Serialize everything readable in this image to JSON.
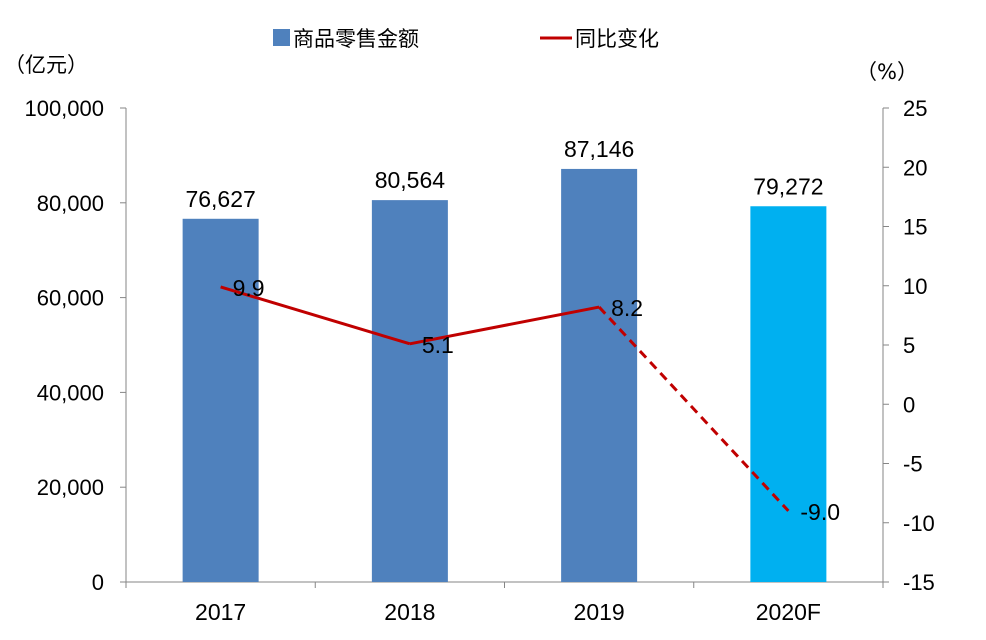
{
  "chart_data": {
    "type": "bar+line",
    "categories": [
      "2017",
      "2018",
      "2019",
      "2020F"
    ],
    "series": [
      {
        "name": "商品零售金额",
        "kind": "bar",
        "axis": "left",
        "values": [
          76627,
          80564,
          87146,
          79272
        ],
        "value_labels": [
          "76,627",
          "80,564",
          "87,146",
          "79,272"
        ],
        "colors": [
          "#4F81BD",
          "#4F81BD",
          "#4F81BD",
          "#00B0F0"
        ]
      },
      {
        "name": "同比变化",
        "kind": "line",
        "axis": "right",
        "values": [
          9.9,
          5.1,
          8.2,
          -9.0
        ],
        "value_labels": [
          "9.9",
          "5.1",
          "8.2",
          "-9.0"
        ],
        "color": "#C00000",
        "dashed_from_index": 2
      }
    ],
    "y_left": {
      "unit": "（亿元）",
      "range": [
        0,
        100000
      ],
      "ticks": [
        0,
        20000,
        40000,
        60000,
        80000,
        100000
      ],
      "tick_labels": [
        "0",
        "20,000",
        "40,000",
        "60,000",
        "80,000",
        "100,000"
      ]
    },
    "y_right": {
      "unit": "（%）",
      "range": [
        -15,
        25
      ],
      "ticks": [
        -15,
        -10,
        -5,
        0,
        5,
        10,
        15,
        20,
        25
      ],
      "tick_labels": [
        "-15",
        "-10",
        "-5",
        "0",
        "5",
        "10",
        "15",
        "20",
        "25"
      ]
    },
    "grid": false,
    "legend_position": "top-center"
  }
}
